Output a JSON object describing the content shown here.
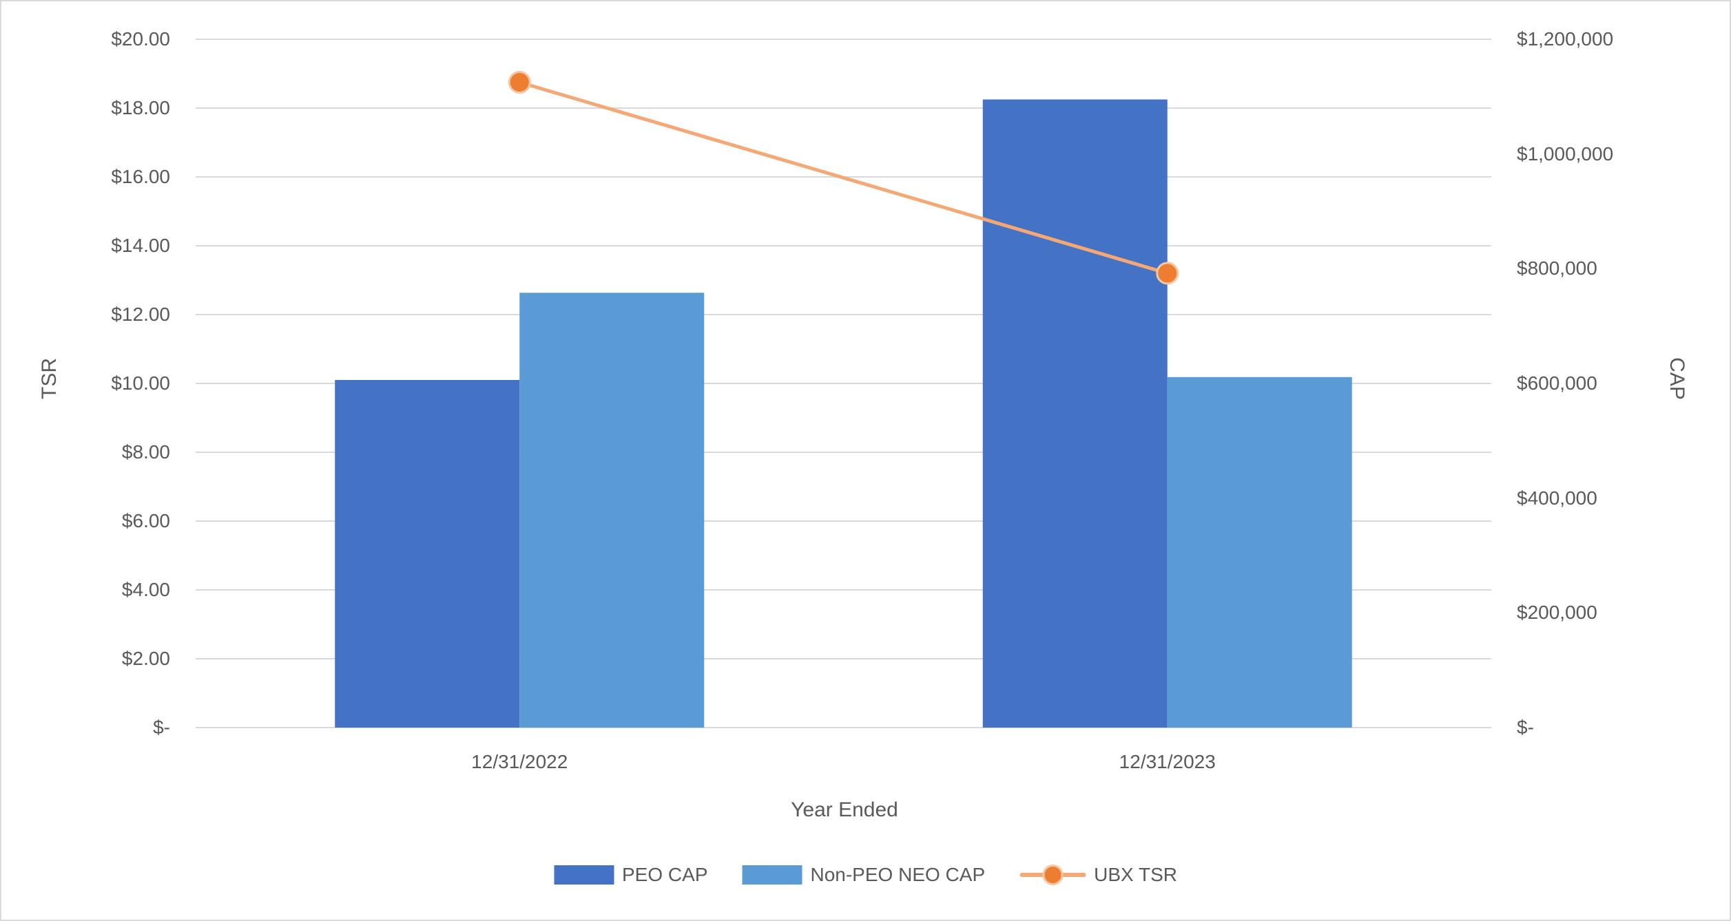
{
  "chart_data": {
    "type": "bar",
    "subtype": "combo-bar-line",
    "categories": [
      "12/31/2022",
      "12/31/2023"
    ],
    "series": [
      {
        "name": "PEO CAP",
        "type": "bar",
        "axis": "right",
        "color": "#4472C4",
        "values": [
          606000,
          1095000
        ]
      },
      {
        "name": "Non-PEO NEO CAP",
        "type": "bar",
        "axis": "right",
        "color": "#5B9BD5",
        "values": [
          758000,
          611000
        ]
      },
      {
        "name": "UBX TSR",
        "type": "line",
        "axis": "left",
        "color": "#F5A873",
        "marker_color": "#ED7D31",
        "marker_stroke": "#F8C5A0",
        "values": [
          18.75,
          13.2
        ]
      }
    ],
    "left_axis": {
      "title": "TSR",
      "min": 0,
      "max": 20,
      "step": 2,
      "tick_labels": [
        "$20.00",
        "$18.00",
        "$16.00",
        "$14.00",
        "$12.00",
        "$10.00",
        "$8.00",
        "$6.00",
        "$4.00",
        "$2.00",
        "$-"
      ]
    },
    "right_axis": {
      "title": "CAP",
      "min": 0,
      "max": 1200000,
      "step": 200000,
      "tick_labels": [
        "$1,200,000",
        "$1,000,000",
        "$800,000",
        "$600,000",
        "$400,000",
        "$200,000",
        "$-"
      ]
    },
    "x_axis": {
      "title": "Year Ended"
    },
    "legend": {
      "position": "bottom",
      "items": [
        "PEO CAP",
        "Non-PEO NEO CAP",
        "UBX TSR"
      ]
    },
    "grid": true,
    "gridline_color": "#D9D9D9",
    "text_color": "#595959",
    "background": "#FFFFFF",
    "border_color": "#D9D9D9"
  }
}
